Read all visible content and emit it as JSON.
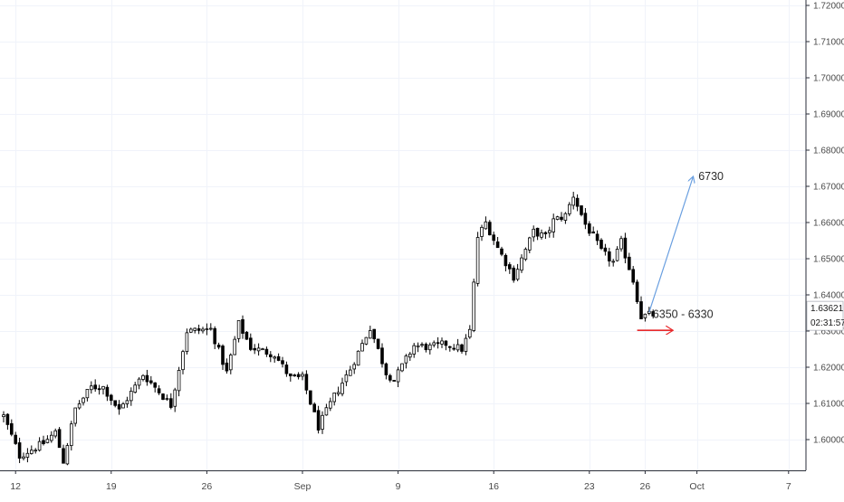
{
  "chart_data": {
    "type": "candlestick",
    "y_axis": {
      "ylim": [
        1.5915,
        1.7215
      ],
      "tick_labels": [
        "1.72000",
        "1.71000",
        "1.70000",
        "1.69000",
        "1.68000",
        "1.67000",
        "1.66000",
        "1.65000",
        "1.64000",
        "1.63000",
        "1.62000",
        "1.61000",
        "1.60000"
      ],
      "tick_values": [
        1.72,
        1.71,
        1.7,
        1.69,
        1.68,
        1.67,
        1.66,
        1.65,
        1.64,
        1.63,
        1.62,
        1.61,
        1.6
      ]
    },
    "x_axis": {
      "tick_labels": [
        "12",
        "19",
        "26",
        "Sep",
        "9",
        "16",
        "23",
        "26",
        "Oct",
        "7"
      ],
      "tick_positions_bars": [
        3,
        27,
        51,
        75,
        99,
        123,
        147,
        161,
        174,
        197
      ]
    },
    "current_price": "1.63621",
    "countdown": "02:31:57",
    "grid": true,
    "colors": {
      "candle": "#000000",
      "grid": "#f0f3fa",
      "axis_line": "#2a2e39",
      "target_arrow": "#6a9fe0",
      "support_arrow": "#e8292b"
    },
    "annotations": [
      {
        "name": "target",
        "text": "6730",
        "price": 1.6727
      },
      {
        "name": "support",
        "text": "6350 - 6330",
        "price": 1.6346
      }
    ],
    "arrows": [
      {
        "name": "target-arrow",
        "from_bar": 162,
        "from_price": 1.6352,
        "to_bar": 173,
        "to_price": 1.6725
      },
      {
        "name": "support-arrow",
        "from_bar": 159,
        "from_price": 1.6302,
        "to_bar": 168,
        "to_price": 1.6302
      }
    ],
    "segments": [
      [
        0,
        1.6065
      ],
      [
        4,
        1.5955
      ],
      [
        10,
        1.599
      ],
      [
        13,
        1.602
      ],
      [
        15,
        1.594
      ],
      [
        18,
        1.6085
      ],
      [
        22,
        1.6145
      ],
      [
        25,
        1.6145
      ],
      [
        29,
        1.608
      ],
      [
        35,
        1.618
      ],
      [
        38,
        1.6145
      ],
      [
        42,
        1.6095
      ],
      [
        46,
        1.63
      ],
      [
        52,
        1.6305
      ],
      [
        56,
        1.6185
      ],
      [
        59,
        1.632
      ],
      [
        62,
        1.6255
      ],
      [
        68,
        1.6235
      ],
      [
        72,
        1.617
      ],
      [
        75,
        1.617
      ],
      [
        79,
        1.6035
      ],
      [
        83,
        1.612
      ],
      [
        87,
        1.6195
      ],
      [
        92,
        1.631
      ],
      [
        96,
        1.6185
      ],
      [
        98,
        1.6165
      ],
      [
        103,
        1.626
      ],
      [
        107,
        1.6255
      ],
      [
        111,
        1.6265
      ],
      [
        115,
        1.625
      ],
      [
        117,
        1.63
      ],
      [
        119,
        1.656
      ],
      [
        121,
        1.66
      ],
      [
        124,
        1.653
      ],
      [
        128,
        1.645
      ],
      [
        130,
        1.65
      ],
      [
        133,
        1.6575
      ],
      [
        136,
        1.656
      ],
      [
        138,
        1.6605
      ],
      [
        141,
        1.662
      ],
      [
        143,
        1.6675
      ],
      [
        146,
        1.6595
      ],
      [
        148,
        1.656
      ],
      [
        150,
        1.652
      ],
      [
        153,
        1.649
      ],
      [
        155,
        1.6545
      ],
      [
        158,
        1.644
      ],
      [
        160,
        1.634
      ],
      [
        162,
        1.6345
      ]
    ],
    "visible_bars": 164,
    "bar_spacing_px": 4.4
  }
}
